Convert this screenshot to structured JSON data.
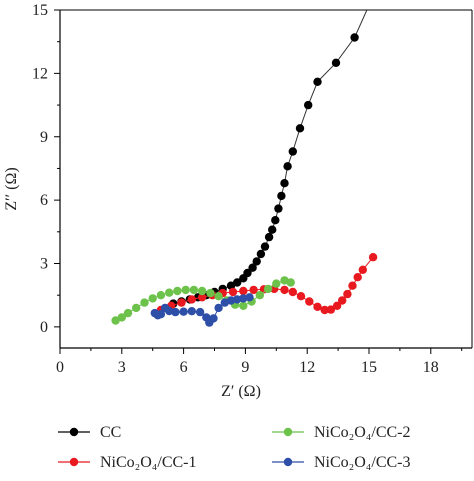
{
  "chart_data": {
    "type": "scatter",
    "xlabel": "Z′ (Ω)",
    "ylabel": "Z′′ (Ω)",
    "xlim": [
      0,
      20
    ],
    "ylim": [
      -1,
      15
    ],
    "xticks": [
      "0",
      "3",
      "6",
      "9",
      "12",
      "15",
      "18"
    ],
    "yticks": [
      "0",
      "3",
      "6",
      "9",
      "12",
      "15"
    ],
    "grid": false,
    "legend_position": "bottom",
    "series": [
      {
        "name": "CC",
        "color": "#000000",
        "points": [
          [
            5.5,
            1.1
          ],
          [
            5.9,
            1.2
          ],
          [
            6.3,
            1.3
          ],
          [
            6.7,
            1.4
          ],
          [
            7.1,
            1.5
          ],
          [
            7.5,
            1.65
          ],
          [
            7.9,
            1.8
          ],
          [
            8.3,
            1.95
          ],
          [
            8.6,
            2.1
          ],
          [
            8.9,
            2.3
          ],
          [
            9.1,
            2.55
          ],
          [
            9.35,
            2.8
          ],
          [
            9.55,
            3.1
          ],
          [
            9.75,
            3.45
          ],
          [
            9.95,
            3.8
          ],
          [
            10.15,
            4.25
          ],
          [
            10.3,
            4.6
          ],
          [
            10.45,
            5.05
          ],
          [
            10.6,
            5.6
          ],
          [
            10.75,
            6.2
          ],
          [
            10.9,
            6.8
          ],
          [
            11.05,
            7.6
          ],
          [
            11.3,
            8.3
          ],
          [
            11.65,
            9.4
          ],
          [
            12.05,
            10.5
          ],
          [
            12.5,
            11.6
          ],
          [
            13.4,
            12.5
          ],
          [
            14.3,
            13.7
          ]
        ],
        "line_to": [
          14.9,
          15
        ]
      },
      {
        "name": "NiCo₂O₄/CC-1",
        "color": "#e8191f",
        "points": [
          [
            4.9,
            0.8
          ],
          [
            5.4,
            1.0
          ],
          [
            5.9,
            1.15
          ],
          [
            6.4,
            1.3
          ],
          [
            6.9,
            1.4
          ],
          [
            7.4,
            1.5
          ],
          [
            7.9,
            1.6
          ],
          [
            8.4,
            1.65
          ],
          [
            8.9,
            1.7
          ],
          [
            9.4,
            1.75
          ],
          [
            9.9,
            1.78
          ],
          [
            10.4,
            1.8
          ],
          [
            10.9,
            1.75
          ],
          [
            11.3,
            1.65
          ],
          [
            11.7,
            1.45
          ],
          [
            12.1,
            1.2
          ],
          [
            12.5,
            0.95
          ],
          [
            12.85,
            0.8
          ],
          [
            13.15,
            0.82
          ],
          [
            13.45,
            1.0
          ],
          [
            13.7,
            1.25
          ],
          [
            13.95,
            1.55
          ],
          [
            14.2,
            1.95
          ],
          [
            14.45,
            2.35
          ],
          [
            14.7,
            2.7
          ],
          [
            15.2,
            3.3
          ]
        ]
      },
      {
        "name": "NiCo₂O₄/CC-2",
        "color": "#6cc24a",
        "points": [
          [
            2.7,
            0.3
          ],
          [
            3.0,
            0.45
          ],
          [
            3.3,
            0.65
          ],
          [
            3.7,
            0.9
          ],
          [
            4.1,
            1.15
          ],
          [
            4.5,
            1.35
          ],
          [
            4.9,
            1.5
          ],
          [
            5.3,
            1.62
          ],
          [
            5.7,
            1.7
          ],
          [
            6.1,
            1.75
          ],
          [
            6.5,
            1.75
          ],
          [
            6.9,
            1.7
          ],
          [
            7.3,
            1.6
          ],
          [
            7.7,
            1.45
          ],
          [
            8.1,
            1.25
          ],
          [
            8.5,
            1.05
          ],
          [
            8.9,
            1.0
          ],
          [
            9.3,
            1.2
          ],
          [
            9.7,
            1.5
          ],
          [
            10.1,
            1.8
          ],
          [
            10.5,
            2.05
          ],
          [
            10.9,
            2.2
          ],
          [
            11.2,
            2.1
          ]
        ]
      },
      {
        "name": "NiCo₂O₄/CC-3",
        "color": "#2e4fa8",
        "points": [
          [
            4.6,
            0.65
          ],
          [
            4.75,
            0.55
          ],
          [
            4.9,
            0.6
          ],
          [
            5.1,
            0.9
          ],
          [
            5.3,
            0.75
          ],
          [
            5.6,
            0.7
          ],
          [
            6.0,
            0.72
          ],
          [
            6.4,
            0.74
          ],
          [
            6.8,
            0.7
          ],
          [
            7.1,
            0.45
          ],
          [
            7.25,
            0.2
          ],
          [
            7.45,
            0.4
          ],
          [
            7.7,
            0.9
          ],
          [
            8.0,
            1.15
          ],
          [
            8.3,
            1.25
          ],
          [
            8.6,
            1.3
          ],
          [
            8.9,
            1.35
          ],
          [
            9.2,
            1.4
          ]
        ]
      }
    ]
  }
}
